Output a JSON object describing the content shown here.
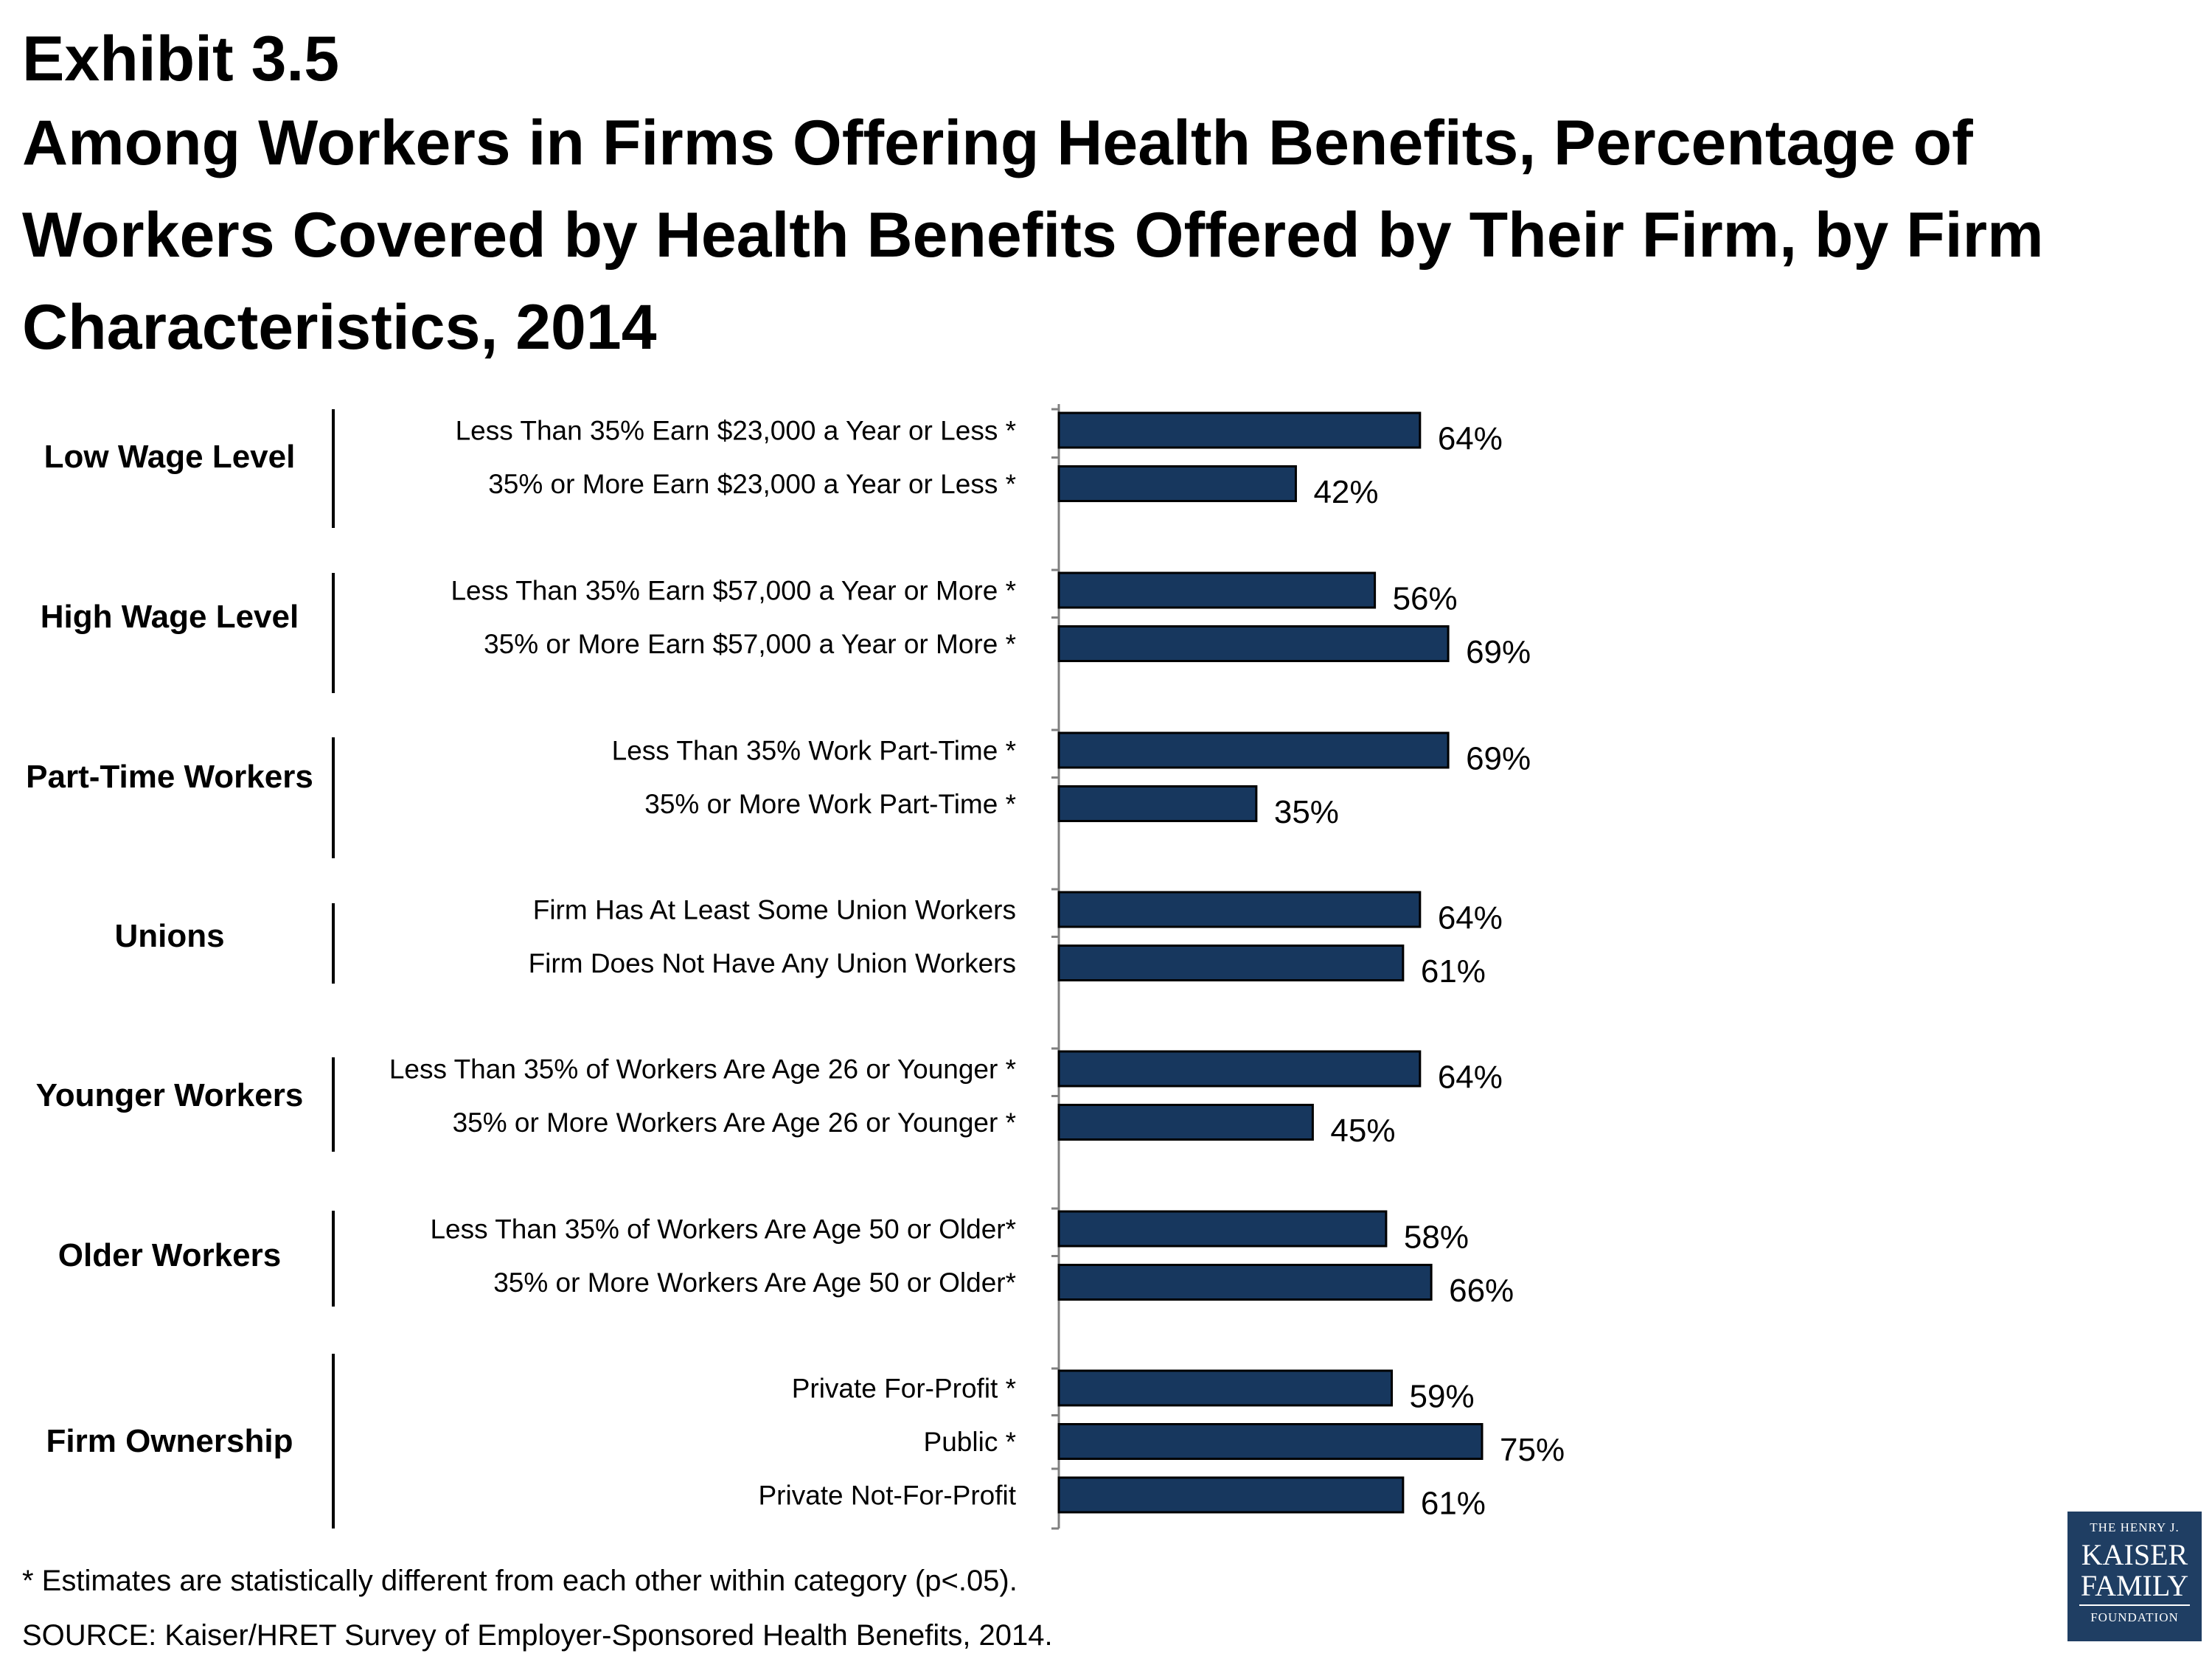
{
  "header": {
    "exhibit": "Exhibit 3.5",
    "title": "Among Workers in Firms Offering Health Benefits, Percentage of Workers Covered by Health Benefits Offered by Their Firm, by Firm Characteristics, 2014"
  },
  "chart_data": {
    "type": "bar",
    "orientation": "horizontal",
    "bar_color": "#17375e",
    "xlim": [
      0,
      100
    ],
    "value_suffix": "%",
    "groups": [
      {
        "name": "Low Wage Level",
        "categories": [
          "Less Than 35% Earn $23,000 a Year or Less *",
          "35% or More Earn $23,000 a Year or Less *"
        ],
        "values": [
          64,
          42
        ]
      },
      {
        "name": "High Wage Level",
        "categories": [
          "Less Than 35% Earn $57,000 a Year or More *",
          "35% or More Earn $57,000 a Year or More *"
        ],
        "values": [
          56,
          69
        ]
      },
      {
        "name": "Part-Time Workers",
        "categories": [
          "Less Than 35% Work Part-Time *",
          "35% or More Work Part-Time *"
        ],
        "values": [
          69,
          35
        ]
      },
      {
        "name": "Unions",
        "categories": [
          "Firm Has At Least Some Union Workers",
          "Firm Does Not Have Any Union Workers"
        ],
        "values": [
          64,
          61
        ]
      },
      {
        "name": "Younger Workers",
        "categories": [
          "Less Than 35% of Workers Are Age 26 or Younger *",
          "35% or More Workers Are Age 26 or Younger *"
        ],
        "values": [
          64,
          45
        ]
      },
      {
        "name": "Older Workers",
        "categories": [
          "Less Than 35% of Workers Are Age 50 or Older*",
          "35% or More Workers Are Age 50 or Older*"
        ],
        "values": [
          58,
          66
        ]
      },
      {
        "name": "Firm Ownership",
        "categories": [
          "Private For-Profit *",
          "Public *",
          "Private Not-For-Profit"
        ],
        "values": [
          59,
          75,
          61
        ]
      }
    ]
  },
  "footer": {
    "footnote": "* Estimates are statistically different from each other within category (p<.05).",
    "source": "SOURCE: Kaiser/HRET Survey of Employer-Sponsored Health Benefits, 2014."
  },
  "logo": {
    "line1": "THE HENRY J.",
    "line2": "KAISER",
    "line3": "FAMILY",
    "line4": "FOUNDATION"
  }
}
